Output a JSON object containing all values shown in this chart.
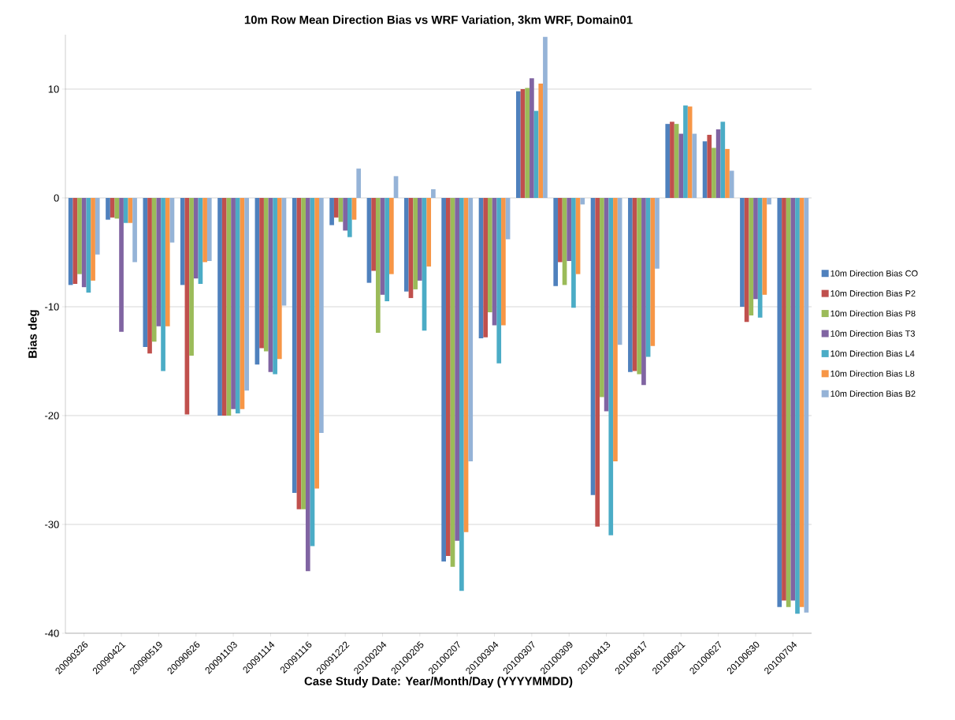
{
  "chart_data": {
    "type": "bar",
    "title": "10m Row Mean Direction  Bias  vs WRF Variation, 3km WRF, Domain01",
    "xlabel": "Case Study Date: Year/Month/Day (YYYYMMDD)",
    "ylabel": "Bias deg",
    "categories": [
      "20090326",
      "20090421",
      "20090519",
      "20090626",
      "20091103",
      "20091114",
      "20091116",
      "20091222",
      "20100204",
      "20100205",
      "20100207",
      "20100304",
      "20100307",
      "20100309",
      "20100413",
      "20100617",
      "20100621",
      "20100627",
      "20100630",
      "20100704"
    ],
    "series": [
      {
        "name": "10m Direction Bias CO",
        "color": "#4f81bd",
        "values": [
          -8.0,
          -2.0,
          -13.7,
          -8.0,
          -20.0,
          -15.3,
          -27.1,
          -2.5,
          -7.8,
          -8.6,
          -33.4,
          -12.9,
          9.8,
          -8.1,
          -27.3,
          -16.0,
          6.8,
          5.2,
          -10.0,
          -37.6
        ]
      },
      {
        "name": "10m Direction Bias P2",
        "color": "#c0504d",
        "values": [
          -7.9,
          -1.8,
          -14.3,
          -19.9,
          -20.0,
          -13.8,
          -28.6,
          -1.8,
          -6.7,
          -9.2,
          -32.9,
          -12.8,
          10.0,
          -5.9,
          -30.2,
          -15.9,
          7.0,
          5.8,
          -11.4,
          -37.0
        ]
      },
      {
        "name": "10m Direction Bias P8",
        "color": "#9bbb59",
        "values": [
          -7.0,
          -1.9,
          -13.2,
          -14.5,
          -20.0,
          -14.1,
          -28.6,
          -2.2,
          -12.4,
          -8.4,
          -33.9,
          -10.5,
          10.1,
          -8.0,
          -18.3,
          -16.2,
          6.8,
          4.6,
          -10.8,
          -37.6
        ]
      },
      {
        "name": "10m Direction Bias T3",
        "color": "#8064a2",
        "values": [
          -8.2,
          -12.3,
          -11.8,
          -7.4,
          -19.4,
          -16.0,
          -34.3,
          -3.0,
          -8.9,
          -7.6,
          -31.5,
          -11.7,
          11.0,
          -5.8,
          -19.6,
          -17.2,
          5.9,
          6.3,
          -9.3,
          -37.0
        ]
      },
      {
        "name": "10m Direction Bias L4",
        "color": "#4bacc6",
        "values": [
          -8.7,
          -2.3,
          -15.9,
          -7.9,
          -19.8,
          -16.2,
          -32.0,
          -3.6,
          -9.5,
          -12.2,
          -36.1,
          -15.2,
          8.0,
          -10.1,
          -31.0,
          -14.6,
          8.5,
          7.0,
          -11.0,
          -38.2
        ]
      },
      {
        "name": "10m Direction Bias L8",
        "color": "#f79646",
        "values": [
          -7.6,
          -2.3,
          -11.8,
          -5.9,
          -19.4,
          -14.8,
          -26.7,
          -2.0,
          -7.0,
          -6.3,
          -30.7,
          -11.7,
          10.5,
          -7.0,
          -24.2,
          -13.6,
          8.4,
          4.5,
          -8.9,
          -37.6
        ]
      },
      {
        "name": "10m Direction Bias B2",
        "color": "#95b3d7",
        "values": [
          -5.2,
          -5.9,
          -4.1,
          -5.8,
          -17.7,
          -9.9,
          -21.6,
          2.7,
          2.0,
          0.8,
          -24.2,
          -3.8,
          14.8,
          -0.6,
          -13.5,
          -6.5,
          5.9,
          2.5,
          -0.6,
          -38.1
        ]
      }
    ],
    "ylim": [
      -40,
      15
    ],
    "yticks": [
      -40,
      -30,
      -20,
      -10,
      0,
      10
    ],
    "grid": "y",
    "legend": "right"
  }
}
